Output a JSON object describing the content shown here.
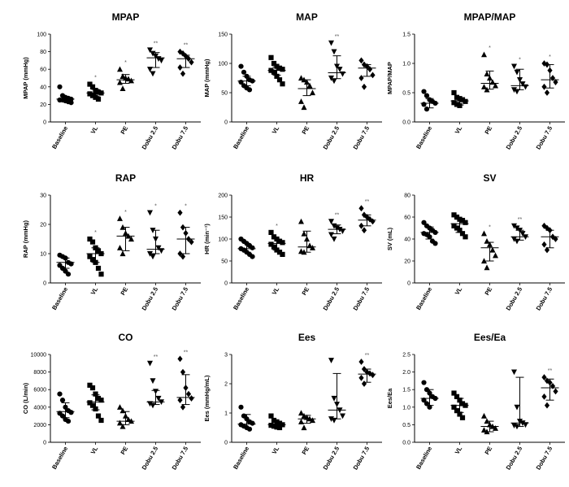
{
  "figure": {
    "categories": [
      "Baseline",
      "VL",
      "PE",
      "Dobu 2.5",
      "Dobu 7.5"
    ],
    "marker_shapes": [
      "circle",
      "square",
      "triangle-up",
      "triangle-down",
      "diamond"
    ]
  },
  "chart_data": [
    {
      "type": "scatter",
      "title": "MPAP",
      "ylabel": "MPAP (mmHg)",
      "ylim": [
        0,
        100
      ],
      "yticks": [
        0,
        20,
        40,
        60,
        80,
        100
      ],
      "ytick_labels": [
        "0",
        "20",
        "40",
        "60",
        "80",
        "100"
      ],
      "groups": [
        {
          "name": "Baseline",
          "values": [
            40,
            30,
            28,
            27,
            26,
            25,
            25,
            24,
            23,
            22
          ],
          "median": 26,
          "q1": 24,
          "q3": 28,
          "sig": ""
        },
        {
          "name": "VL",
          "values": [
            43,
            40,
            36,
            34,
            33,
            32,
            30,
            28,
            26
          ],
          "median": 33,
          "q1": 29,
          "q3": 37,
          "sig": "*"
        },
        {
          "name": "PE",
          "values": [
            60,
            52,
            50,
            49,
            47,
            45,
            38
          ],
          "median": 48,
          "q1": 44,
          "q3": 54,
          "sig": "*"
        },
        {
          "name": "Dobu 2.5",
          "values": [
            82,
            78,
            75,
            72,
            70,
            60,
            55
          ],
          "median": 73,
          "q1": 62,
          "q3": 79,
          "sig": "**"
        },
        {
          "name": "Dobu 7.5",
          "values": [
            80,
            78,
            75,
            72,
            68,
            62,
            55
          ],
          "median": 72,
          "q1": 62,
          "q3": 76,
          "sig": "**"
        }
      ]
    },
    {
      "type": "scatter",
      "title": "MAP",
      "ylabel": "MAP (mmHg)",
      "ylim": [
        0,
        150
      ],
      "yticks": [
        0,
        50,
        100,
        150
      ],
      "ytick_labels": [
        "0",
        "50",
        "100",
        "150"
      ],
      "groups": [
        {
          "name": "Baseline",
          "values": [
            95,
            85,
            78,
            72,
            70,
            68,
            62,
            58,
            55
          ],
          "median": 70,
          "q1": 62,
          "q3": 78,
          "sig": ""
        },
        {
          "name": "VL",
          "values": [
            110,
            100,
            95,
            92,
            90,
            88,
            85,
            78,
            72,
            65
          ],
          "median": 88,
          "q1": 80,
          "q3": 94,
          "sig": ""
        },
        {
          "name": "PE",
          "values": [
            75,
            72,
            68,
            62,
            50,
            35,
            25
          ],
          "median": 57,
          "q1": 45,
          "q3": 72,
          "sig": ""
        },
        {
          "name": "Dobu 2.5",
          "values": [
            135,
            120,
            95,
            90,
            82,
            75,
            70
          ],
          "median": 84,
          "q1": 74,
          "q3": 113,
          "sig": "**"
        },
        {
          "name": "Dobu 7.5",
          "values": [
            105,
            98,
            95,
            90,
            80,
            75,
            60
          ],
          "median": 92,
          "q1": 78,
          "q3": 98,
          "sig": ""
        }
      ]
    },
    {
      "type": "scatter",
      "title": "MPAP/MAP",
      "ylabel": "MPAP/MAP",
      "ylim": [
        0,
        1.5
      ],
      "yticks": [
        0,
        0.5,
        1.0,
        1.5
      ],
      "ytick_labels": [
        "0.0",
        "0.5",
        "1.0",
        "1.5"
      ],
      "groups": [
        {
          "name": "Baseline",
          "values": [
            0.52,
            0.45,
            0.38,
            0.35,
            0.32,
            0.3,
            0.22
          ],
          "median": 0.32,
          "q1": 0.24,
          "q3": 0.4,
          "sig": ""
        },
        {
          "name": "VL",
          "values": [
            0.5,
            0.42,
            0.4,
            0.38,
            0.35,
            0.33,
            0.3,
            0.28
          ],
          "median": 0.36,
          "q1": 0.29,
          "q3": 0.4,
          "sig": ""
        },
        {
          "name": "PE",
          "values": [
            1.15,
            0.82,
            0.75,
            0.68,
            0.62,
            0.6,
            0.55
          ],
          "median": 0.66,
          "q1": 0.56,
          "q3": 0.87,
          "sig": "*"
        },
        {
          "name": "Dobu 2.5",
          "values": [
            0.95,
            0.85,
            0.72,
            0.65,
            0.6,
            0.55,
            0.52
          ],
          "median": 0.62,
          "q1": 0.55,
          "q3": 0.9,
          "sig": "*"
        },
        {
          "name": "Dobu 7.5",
          "values": [
            1.0,
            0.98,
            0.88,
            0.75,
            0.68,
            0.6,
            0.5
          ],
          "median": 0.72,
          "q1": 0.58,
          "q3": 0.98,
          "sig": "*"
        }
      ]
    },
    {
      "type": "scatter",
      "title": "RAP",
      "ylabel": "RAP (mmHg)",
      "ylim": [
        0,
        30
      ],
      "yticks": [
        0,
        10,
        20,
        30
      ],
      "ytick_labels": [
        "0",
        "10",
        "20",
        "30"
      ],
      "groups": [
        {
          "name": "Baseline",
          "values": [
            9.5,
            9,
            8.5,
            7,
            6.5,
            6,
            5,
            4,
            3
          ],
          "median": 7,
          "q1": 5,
          "q3": 8.5,
          "sig": ""
        },
        {
          "name": "VL",
          "values": [
            15,
            14,
            12,
            11,
            10,
            9,
            8,
            7,
            5,
            3
          ],
          "median": 10,
          "q1": 7,
          "q3": 12,
          "sig": "*"
        },
        {
          "name": "PE",
          "values": [
            22,
            19,
            17,
            16,
            15,
            12,
            10
          ],
          "median": 16,
          "q1": 11,
          "q3": 19,
          "sig": "*"
        },
        {
          "name": "Dobu 2.5",
          "values": [
            24,
            18,
            15,
            12,
            11,
            10,
            9
          ],
          "median": 11.5,
          "q1": 10,
          "q3": 18,
          "sig": "*"
        },
        {
          "name": "Dobu 7.5",
          "values": [
            24,
            19,
            17,
            15,
            14,
            10,
            9
          ],
          "median": 15,
          "q1": 10,
          "q3": 19,
          "sig": "*"
        }
      ]
    },
    {
      "type": "scatter",
      "title": "HR",
      "ylabel": "HR (min⁻¹)",
      "ylim": [
        0,
        200
      ],
      "yticks": [
        0,
        50,
        100,
        150,
        200
      ],
      "ytick_labels": [
        "0",
        "50",
        "100",
        "150",
        "200"
      ],
      "groups": [
        {
          "name": "Baseline",
          "values": [
            100,
            95,
            90,
            85,
            80,
            78,
            75,
            70,
            65,
            60
          ],
          "median": 78,
          "q1": 70,
          "q3": 90,
          "sig": ""
        },
        {
          "name": "VL",
          "values": [
            115,
            105,
            100,
            95,
            92,
            88,
            82,
            75,
            70,
            65
          ],
          "median": 90,
          "q1": 75,
          "q3": 100,
          "sig": "*"
        },
        {
          "name": "PE",
          "values": [
            140,
            112,
            100,
            85,
            80,
            72,
            70
          ],
          "median": 82,
          "q1": 70,
          "q3": 118,
          "sig": ""
        },
        {
          "name": "Dobu 2.5",
          "values": [
            140,
            130,
            125,
            122,
            118,
            110,
            100
          ],
          "median": 122,
          "q1": 112,
          "q3": 132,
          "sig": "**"
        },
        {
          "name": "Dobu 7.5",
          "values": [
            170,
            155,
            150,
            145,
            140,
            130,
            120
          ],
          "median": 143,
          "q1": 130,
          "q3": 155,
          "sig": "**"
        }
      ]
    },
    {
      "type": "scatter",
      "title": "SV",
      "ylabel": "SV (mL)",
      "ylim": [
        0,
        80
      ],
      "yticks": [
        0,
        20,
        40,
        60,
        80
      ],
      "ytick_labels": [
        "0",
        "20",
        "40",
        "60",
        "80"
      ],
      "groups": [
        {
          "name": "Baseline",
          "values": [
            55,
            52,
            50,
            48,
            46,
            45,
            44,
            42,
            38,
            36
          ],
          "median": 46,
          "q1": 40,
          "q3": 51,
          "sig": ""
        },
        {
          "name": "VL",
          "values": [
            62,
            60,
            58,
            57,
            55,
            52,
            50,
            48,
            45,
            42
          ],
          "median": 54,
          "q1": 46,
          "q3": 58,
          "sig": ""
        },
        {
          "name": "PE",
          "values": [
            45,
            38,
            35,
            30,
            25,
            20,
            14
          ],
          "median": 32,
          "q1": 20,
          "q3": 37,
          "sig": "*"
        },
        {
          "name": "Dobu 2.5",
          "values": [
            52,
            50,
            48,
            45,
            42,
            40,
            38
          ],
          "median": 42,
          "q1": 39,
          "q3": 48,
          "sig": "**"
        },
        {
          "name": "Dobu 7.5",
          "values": [
            52,
            50,
            48,
            42,
            40,
            35,
            30
          ],
          "median": 42,
          "q1": 32,
          "q3": 48,
          "sig": ""
        }
      ]
    },
    {
      "type": "scatter",
      "title": "CO",
      "ylabel": "CO (L/min)",
      "ylim": [
        0,
        10000
      ],
      "yticks": [
        0,
        2000,
        4000,
        6000,
        8000,
        10000
      ],
      "ytick_labels": [
        "0",
        "2000",
        "4000",
        "6000",
        "8000",
        "10000"
      ],
      "groups": [
        {
          "name": "Baseline",
          "values": [
            5500,
            4800,
            4000,
            3600,
            3400,
            3300,
            3000,
            2600,
            2400
          ],
          "median": 3500,
          "q1": 2800,
          "q3": 4500,
          "sig": ""
        },
        {
          "name": "VL",
          "values": [
            6500,
            6200,
            5500,
            5000,
            4800,
            4500,
            4200,
            3800,
            3000,
            2500
          ],
          "median": 4600,
          "q1": 3700,
          "q3": 5400,
          "sig": ""
        },
        {
          "name": "PE",
          "values": [
            4000,
            3600,
            3000,
            2600,
            2400,
            2200,
            1800
          ],
          "median": 2400,
          "q1": 2000,
          "q3": 3500,
          "sig": ""
        },
        {
          "name": "Dobu 2.5",
          "values": [
            9000,
            7000,
            5800,
            5000,
            4600,
            4400,
            4200
          ],
          "median": 4600,
          "q1": 4300,
          "q3": 5900,
          "sig": "**"
        },
        {
          "name": "Dobu 7.5",
          "values": [
            9500,
            8000,
            6200,
            5500,
            5000,
            4800,
            4000
          ],
          "median": 5100,
          "q1": 4300,
          "q3": 7700,
          "sig": "**"
        }
      ]
    },
    {
      "type": "scatter",
      "title": "Ees",
      "ylabel": "Ees (mmHg/mL)",
      "ylim": [
        0,
        3
      ],
      "yticks": [
        0,
        1,
        2,
        3
      ],
      "ytick_labels": [
        "0",
        "1",
        "2",
        "3"
      ],
      "groups": [
        {
          "name": "Baseline",
          "values": [
            1.2,
            0.9,
            0.8,
            0.7,
            0.65,
            0.6,
            0.55,
            0.5,
            0.45
          ],
          "median": 0.62,
          "q1": 0.5,
          "q3": 0.95,
          "sig": ""
        },
        {
          "name": "VL",
          "values": [
            0.9,
            0.75,
            0.7,
            0.65,
            0.6,
            0.58,
            0.55,
            0.52,
            0.5
          ],
          "median": 0.6,
          "q1": 0.53,
          "q3": 0.72,
          "sig": ""
        },
        {
          "name": "PE",
          "values": [
            1.0,
            0.9,
            0.85,
            0.8,
            0.75,
            0.7,
            0.5
          ],
          "median": 0.8,
          "q1": 0.65,
          "q3": 0.92,
          "sig": ""
        },
        {
          "name": "Dobu 2.5",
          "values": [
            2.8,
            1.5,
            1.3,
            1.1,
            0.9,
            0.8,
            0.75
          ],
          "median": 1.1,
          "q1": 0.8,
          "q3": 2.35,
          "sig": ""
        },
        {
          "name": "Dobu 7.5",
          "values": [
            2.75,
            2.5,
            2.4,
            2.35,
            2.3,
            2.2,
            2.0
          ],
          "median": 2.33,
          "q1": 2.05,
          "q3": 2.5,
          "sig": "**"
        }
      ]
    },
    {
      "type": "scatter",
      "title": "Ees/Ea",
      "ylabel": "Ees/Ea",
      "ylim": [
        0,
        2.5
      ],
      "yticks": [
        0,
        0.5,
        1.0,
        1.5,
        2.0,
        2.5
      ],
      "ytick_labels": [
        "0.0",
        "0.5",
        "1.0",
        "1.5",
        "2.0",
        "2.5"
      ],
      "groups": [
        {
          "name": "Baseline",
          "values": [
            1.7,
            1.5,
            1.4,
            1.3,
            1.25,
            1.2,
            1.1,
            1.0
          ],
          "median": 1.25,
          "q1": 1.05,
          "q3": 1.5,
          "sig": ""
        },
        {
          "name": "VL",
          "values": [
            1.4,
            1.3,
            1.2,
            1.1,
            1.05,
            1.0,
            0.9,
            0.8,
            0.7
          ],
          "median": 1.05,
          "q1": 0.85,
          "q3": 1.25,
          "sig": ""
        },
        {
          "name": "PE",
          "values": [
            0.75,
            0.6,
            0.5,
            0.45,
            0.4,
            0.35,
            0.3
          ],
          "median": 0.45,
          "q1": 0.3,
          "q3": 0.6,
          "sig": ""
        },
        {
          "name": "Dobu 2.5",
          "values": [
            2.0,
            1.0,
            0.6,
            0.55,
            0.5,
            0.48,
            0.45
          ],
          "median": 0.55,
          "q1": 0.45,
          "q3": 1.85,
          "sig": ""
        },
        {
          "name": "Dobu 7.5",
          "values": [
            1.85,
            1.75,
            1.7,
            1.6,
            1.45,
            1.3,
            1.05
          ],
          "median": 1.55,
          "q1": 1.2,
          "q3": 1.8,
          "sig": "**"
        }
      ]
    }
  ]
}
